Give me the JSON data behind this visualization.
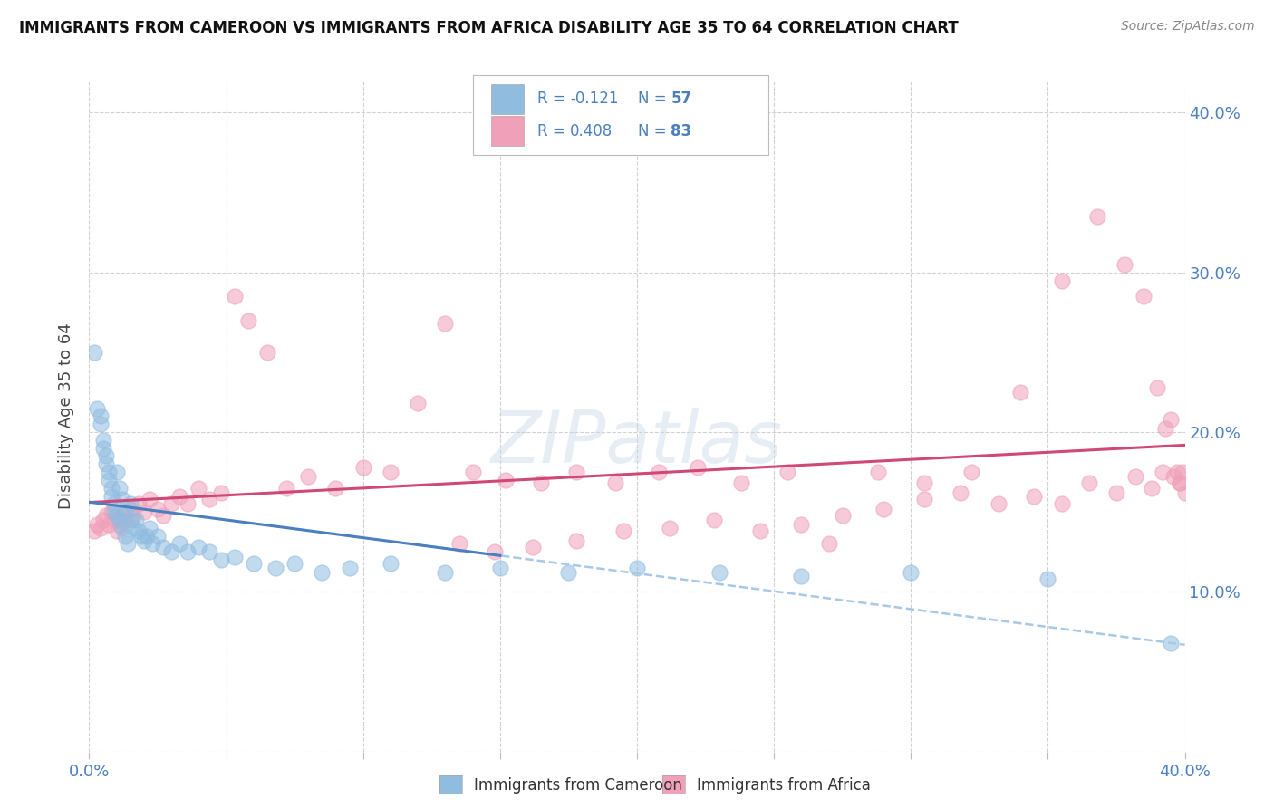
{
  "title": "IMMIGRANTS FROM CAMEROON VS IMMIGRANTS FROM AFRICA DISABILITY AGE 35 TO 64 CORRELATION CHART",
  "source": "Source: ZipAtlas.com",
  "ylabel": "Disability Age 35 to 64",
  "xlim": [
    0.0,
    0.4
  ],
  "ylim": [
    0.0,
    0.42
  ],
  "color_cameroon": "#90bce0",
  "color_africa": "#f0a0b8",
  "color_line_cameroon": "#4a7fc0",
  "color_line_africa": "#d04878",
  "color_line_dashed": "#a8c8e8",
  "r_cameroon": "-0.121",
  "n_cameroon": "57",
  "r_africa": "0.408",
  "n_africa": "83",
  "text_color_blue": "#4a7fc0",
  "text_color_dark": "#333333",
  "watermark": "ZIPatlas",
  "legend_label_cameroon": "Immigrants from Cameroon",
  "legend_label_africa": "Immigrants from Africa",
  "cameroon_x": [
    0.002,
    0.003,
    0.004,
    0.004,
    0.005,
    0.005,
    0.006,
    0.006,
    0.007,
    0.007,
    0.008,
    0.008,
    0.009,
    0.009,
    0.01,
    0.01,
    0.011,
    0.011,
    0.012,
    0.012,
    0.013,
    0.013,
    0.014,
    0.015,
    0.015,
    0.016,
    0.017,
    0.018,
    0.019,
    0.02,
    0.021,
    0.022,
    0.023,
    0.025,
    0.027,
    0.03,
    0.033,
    0.036,
    0.04,
    0.044,
    0.048,
    0.053,
    0.06,
    0.068,
    0.075,
    0.085,
    0.095,
    0.11,
    0.13,
    0.15,
    0.175,
    0.2,
    0.23,
    0.26,
    0.3,
    0.35,
    0.395
  ],
  "cameroon_y": [
    0.25,
    0.215,
    0.21,
    0.205,
    0.195,
    0.19,
    0.185,
    0.18,
    0.175,
    0.17,
    0.165,
    0.16,
    0.155,
    0.15,
    0.148,
    0.175,
    0.145,
    0.165,
    0.14,
    0.158,
    0.135,
    0.15,
    0.13,
    0.145,
    0.155,
    0.14,
    0.145,
    0.138,
    0.135,
    0.132,
    0.135,
    0.14,
    0.13,
    0.135,
    0.128,
    0.125,
    0.13,
    0.125,
    0.128,
    0.125,
    0.12,
    0.122,
    0.118,
    0.115,
    0.118,
    0.112,
    0.115,
    0.118,
    0.112,
    0.115,
    0.112,
    0.115,
    0.112,
    0.11,
    0.112,
    0.108,
    0.068
  ],
  "africa_x": [
    0.002,
    0.003,
    0.004,
    0.005,
    0.006,
    0.007,
    0.008,
    0.009,
    0.01,
    0.011,
    0.012,
    0.013,
    0.015,
    0.016,
    0.018,
    0.02,
    0.022,
    0.025,
    0.027,
    0.03,
    0.033,
    0.036,
    0.04,
    0.044,
    0.048,
    0.053,
    0.058,
    0.065,
    0.072,
    0.08,
    0.09,
    0.1,
    0.11,
    0.12,
    0.13,
    0.14,
    0.152,
    0.165,
    0.178,
    0.192,
    0.208,
    0.222,
    0.238,
    0.255,
    0.27,
    0.288,
    0.305,
    0.322,
    0.34,
    0.355,
    0.368,
    0.378,
    0.385,
    0.39,
    0.393,
    0.395,
    0.397,
    0.398,
    0.399,
    0.4,
    0.398,
    0.396,
    0.392,
    0.388,
    0.382,
    0.375,
    0.365,
    0.355,
    0.345,
    0.332,
    0.318,
    0.305,
    0.29,
    0.275,
    0.26,
    0.245,
    0.228,
    0.212,
    0.195,
    0.178,
    0.162,
    0.148,
    0.135
  ],
  "africa_y": [
    0.138,
    0.142,
    0.14,
    0.145,
    0.148,
    0.142,
    0.15,
    0.145,
    0.138,
    0.142,
    0.148,
    0.145,
    0.152,
    0.148,
    0.155,
    0.15,
    0.158,
    0.152,
    0.148,
    0.155,
    0.16,
    0.155,
    0.165,
    0.158,
    0.162,
    0.285,
    0.27,
    0.25,
    0.165,
    0.172,
    0.165,
    0.178,
    0.175,
    0.218,
    0.268,
    0.175,
    0.17,
    0.168,
    0.175,
    0.168,
    0.175,
    0.178,
    0.168,
    0.175,
    0.13,
    0.175,
    0.168,
    0.175,
    0.225,
    0.295,
    0.335,
    0.305,
    0.285,
    0.228,
    0.202,
    0.208,
    0.175,
    0.168,
    0.175,
    0.162,
    0.168,
    0.172,
    0.175,
    0.165,
    0.172,
    0.162,
    0.168,
    0.155,
    0.16,
    0.155,
    0.162,
    0.158,
    0.152,
    0.148,
    0.142,
    0.138,
    0.145,
    0.14,
    0.138,
    0.132,
    0.128,
    0.125,
    0.13
  ]
}
